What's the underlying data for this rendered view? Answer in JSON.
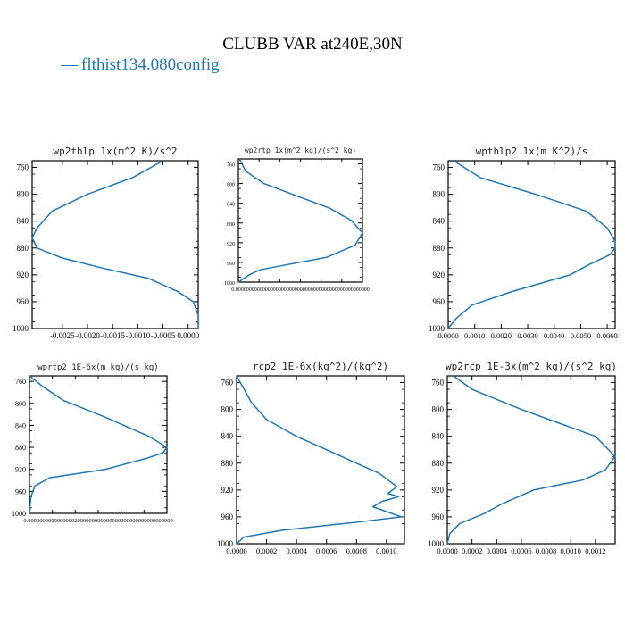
{
  "figure": {
    "title": "CLUBB VAR at240E,30N",
    "legend_label": "flthist134.080config",
    "line_color": "#1f77b4"
  },
  "chart_data": [
    {
      "type": "line",
      "title": "wp2thlp  1x(m^2 K)/s^2",
      "xlim": [
        -0.0031,
        0.0002
      ],
      "ylim": [
        1000,
        750
      ],
      "x_ticks": [
        -0.0025,
        -0.002,
        -0.0015,
        -0.001,
        -0.0005,
        0.0
      ],
      "x_tick_labels": [
        "-0.0025",
        "-0.0020",
        "-0.0015",
        "-0.0010",
        "-0.0005",
        "0.0000"
      ],
      "y_ticks": [
        760,
        800,
        840,
        880,
        920,
        960,
        1000
      ],
      "series": [
        {
          "x": [
            -0.0005,
            -0.0011,
            -0.002,
            -0.0027,
            -0.003,
            -0.0031,
            -0.003,
            -0.0025,
            -0.0017,
            -0.0008,
            -0.0002,
            0.0001,
            0.0002,
            0.0002
          ],
          "y": [
            750,
            775,
            800,
            825,
            850,
            865,
            880,
            895,
            910,
            925,
            945,
            960,
            980,
            1000
          ]
        }
      ]
    },
    {
      "type": "line",
      "title": "wp2rtp  1x(m^2 kg)/(s^2 kg)",
      "xlim": [
        0,
        0.0034
      ],
      "ylim": [
        1000,
        750
      ],
      "x_tick_labels": [
        "0.00000000000000000000000000000000000000000000000000"
      ],
      "y_ticks": [
        760,
        800,
        840,
        880,
        920,
        960,
        1000
      ],
      "series": [
        {
          "x": [
            3e-05,
            0.0002,
            0.0007,
            0.0016,
            0.0025,
            0.0031,
            0.0034,
            0.0032,
            0.0024,
            0.0013,
            0.0006,
            0.0003,
            0.0001,
            0.0
          ],
          "y": [
            750,
            775,
            800,
            825,
            850,
            875,
            900,
            925,
            950,
            965,
            975,
            985,
            995,
            1000
          ]
        }
      ]
    },
    {
      "type": "line",
      "title": "wpthlp2  1x(m K^2)/s",
      "xlim": [
        0,
        0.0063
      ],
      "ylim": [
        1000,
        750
      ],
      "x_ticks": [
        0.0,
        0.001,
        0.002,
        0.003,
        0.004,
        0.005,
        0.006
      ],
      "x_tick_labels": [
        "0.0000",
        "0.0010",
        "0.0020",
        "0.0030",
        "0.0040",
        "0.0050",
        "0.0060"
      ],
      "y_ticks": [
        760,
        800,
        840,
        880,
        920,
        960,
        1000
      ],
      "series": [
        {
          "x": [
            0.0002,
            0.0012,
            0.0033,
            0.0052,
            0.006,
            0.0063,
            0.0063,
            0.0061,
            0.0053,
            0.0046,
            0.0024,
            0.0009,
            0.0003,
            0.0
          ],
          "y": [
            750,
            775,
            800,
            825,
            850,
            870,
            880,
            890,
            905,
            920,
            945,
            965,
            985,
            1000
          ]
        }
      ]
    },
    {
      "type": "line",
      "title": "wprtp2  1E-6x(m kg)/(s kg)",
      "xlim": [
        0,
        1e-05
      ],
      "ylim": [
        1000,
        750
      ],
      "x_tick_labels": [
        "0.00000000000000002000000000000000000000000000000000"
      ],
      "y_ticks": [
        760,
        800,
        840,
        880,
        920,
        960,
        1000
      ],
      "series": [
        {
          "x": [
            0.0,
            1e-06,
            2.5e-06,
            5.5e-06,
            8.7e-06,
            1e-05,
            9.7e-06,
            8.5e-06,
            5.5e-06,
            1.5e-06,
            4e-07,
            1e-07,
            0.0
          ],
          "y": [
            750,
            770,
            795,
            825,
            860,
            880,
            890,
            900,
            920,
            935,
            950,
            970,
            1000
          ]
        }
      ]
    },
    {
      "type": "line",
      "title": "rcp2  1E-6x(kg^2)/(kg^2)",
      "xlim": [
        0,
        0.00112
      ],
      "ylim": [
        1000,
        750
      ],
      "x_ticks": [
        0.0,
        0.0002,
        0.0004,
        0.0006,
        0.0008,
        0.001
      ],
      "x_tick_labels": [
        "0.0000",
        "0.0002",
        "0.0004",
        "0.0006",
        "0.0008",
        "0.0010"
      ],
      "y_ticks": [
        760,
        800,
        840,
        880,
        920,
        960,
        1000
      ],
      "series": [
        {
          "x": [
            0.0,
            5e-05,
            0.0001,
            0.0002,
            0.0004,
            0.0006,
            0.0008,
            0.00095,
            0.00107,
            0.00101,
            0.00108,
            0.00097,
            0.00091,
            0.0011,
            0.0008,
            0.0003,
            5e-05,
            0.0
          ],
          "y": [
            750,
            770,
            790,
            815,
            840,
            860,
            880,
            895,
            915,
            925,
            930,
            937,
            945,
            960,
            968,
            980,
            990,
            1000
          ]
        }
      ]
    },
    {
      "type": "line",
      "title": "wp2rcp  1E-3x(m^2 kg)/(s^2 kg)",
      "xlim": [
        0,
        0.00136
      ],
      "ylim": [
        1000,
        750
      ],
      "x_ticks": [
        0.0,
        0.0002,
        0.0004,
        0.0006,
        0.0008,
        0.001,
        0.0012
      ],
      "x_tick_labels": [
        "0.0000",
        "0.0002",
        "0.0004",
        "0.0006",
        "0.0008",
        "0.0010",
        "0.0012"
      ],
      "y_ticks": [
        760,
        800,
        840,
        880,
        920,
        960,
        1000
      ],
      "series": [
        {
          "x": [
            5e-05,
            0.0002,
            0.0004,
            0.0006,
            0.0009,
            0.0012,
            0.00136,
            0.00128,
            0.0011,
            0.0007,
            0.00045,
            0.0003,
            0.0001,
            2e-05,
            0.0
          ],
          "y": [
            750,
            770,
            785,
            800,
            820,
            840,
            870,
            890,
            905,
            920,
            940,
            955,
            970,
            985,
            1000
          ]
        }
      ]
    }
  ]
}
